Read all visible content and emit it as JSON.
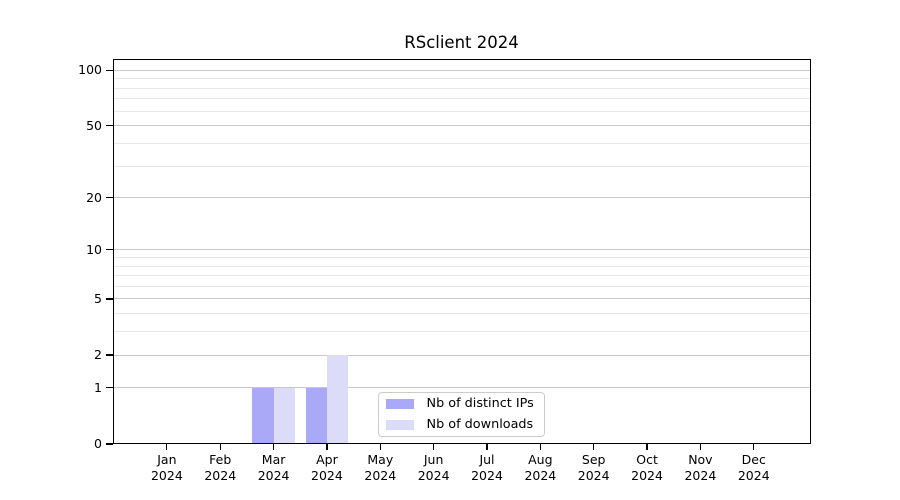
{
  "chart_data": {
    "type": "bar",
    "title": "RSclient 2024",
    "categories": [
      "Jan 2024",
      "Feb 2024",
      "Mar 2024",
      "Apr 2024",
      "May 2024",
      "Jun 2024",
      "Jul 2024",
      "Aug 2024",
      "Sep 2024",
      "Oct 2024",
      "Nov 2024",
      "Dec 2024"
    ],
    "series": [
      {
        "name": "Nb of distinct IPs",
        "color": "#a9a9f7",
        "values": [
          0,
          0,
          1,
          1,
          0,
          0,
          0,
          0,
          0,
          0,
          0,
          0
        ]
      },
      {
        "name": "Nb of downloads",
        "color": "#dcdcf9",
        "values": [
          0,
          0,
          1,
          2,
          0,
          0,
          0,
          0,
          0,
          0,
          0,
          0
        ]
      }
    ],
    "xlabel": "",
    "ylabel": "",
    "yscale": "log1p",
    "yticks": [
      0,
      1,
      2,
      5,
      10,
      20,
      50,
      100
    ],
    "ylim": [
      0,
      116
    ],
    "gridline_values": [
      1,
      2,
      3,
      4,
      5,
      6,
      7,
      8,
      9,
      10,
      20,
      30,
      40,
      50,
      60,
      70,
      80,
      90,
      100
    ],
    "grid": "horizontal-only",
    "legend_position": "inside-bottom-center"
  },
  "colors": {
    "major_grid": "#c9c9c9",
    "minor_grid": "#e8e8e8",
    "axis": "#000000",
    "legend_border": "#cccccc",
    "background": "#ffffff",
    "text": "#000000"
  }
}
